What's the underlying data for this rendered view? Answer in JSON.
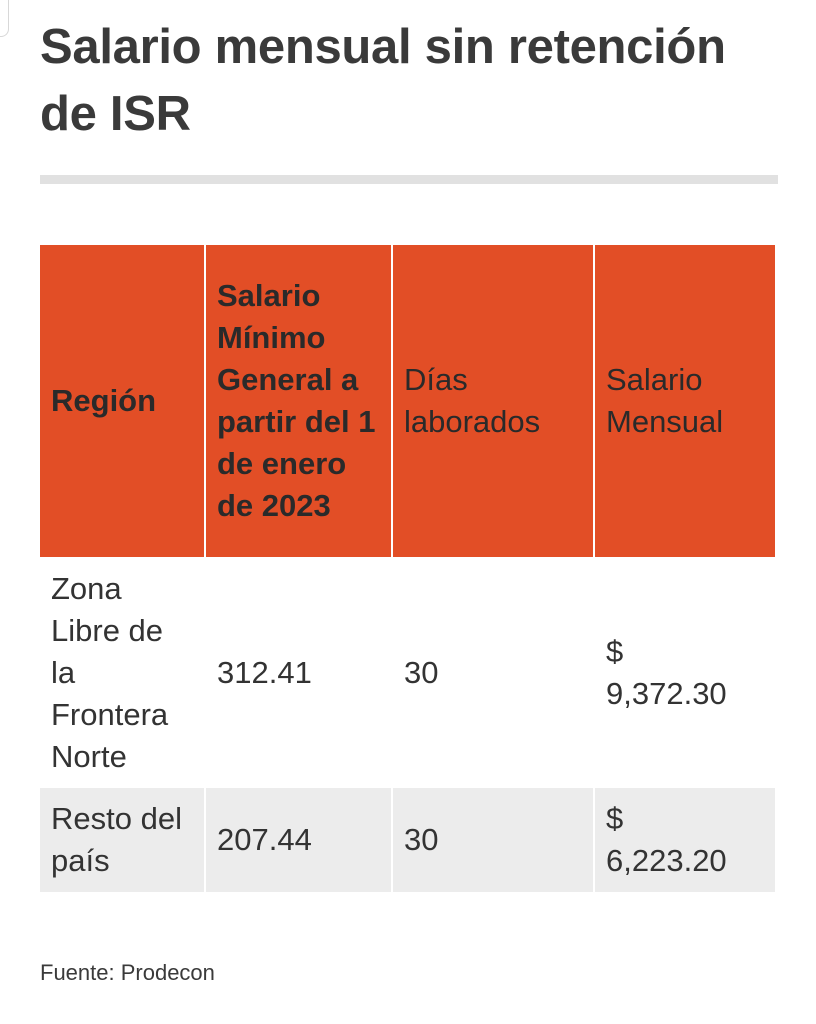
{
  "title": "Salario mensual sin retención de ISR",
  "table": {
    "headers": [
      "Región",
      "Salario Mínimo General a partir del 1 de enero de 2023",
      "Días laborados",
      "Salario Mensual"
    ],
    "rows": [
      {
        "region": "Zona Libre de la Frontera Norte",
        "salario_minimo": "312.41",
        "dias": "30",
        "currency": "$",
        "mensual": "9,372.30"
      },
      {
        "region": "Resto del país",
        "salario_minimo": "207.44",
        "dias": "30",
        "currency": "$",
        "mensual": "6,223.20"
      }
    ]
  },
  "source": "Fuente: Prodecon",
  "colors": {
    "header_bg": "#e24e26",
    "alt_row_bg": "#ececec",
    "rule": "#e1e1e1",
    "text": "#333333"
  }
}
